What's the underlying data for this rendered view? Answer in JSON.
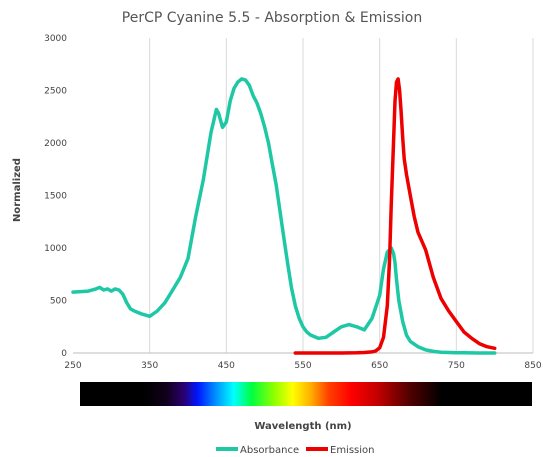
{
  "chart_data": {
    "type": "line",
    "title": "PerCP Cyanine 5.5 - Absorption & Emission",
    "xlabel": "Wavelength (nm)",
    "ylabel": "Normalized",
    "xlim": [
      250,
      850
    ],
    "ylim": [
      0,
      3000
    ],
    "x_ticks": [
      250,
      350,
      450,
      550,
      650,
      750,
      850
    ],
    "y_ticks": [
      0,
      500,
      1000,
      1500,
      2000,
      2500,
      3000
    ],
    "grid": "vertical",
    "legend_position": "bottom",
    "color_bar": "visible spectrum strip below x axis",
    "series": [
      {
        "name": "Absorbance",
        "color": "#1ec8a5",
        "x": [
          250,
          260,
          270,
          280,
          285,
          290,
          295,
          300,
          305,
          310,
          315,
          320,
          325,
          330,
          340,
          350,
          360,
          370,
          380,
          390,
          400,
          410,
          420,
          430,
          437,
          440,
          445,
          450,
          455,
          460,
          465,
          470,
          475,
          480,
          485,
          490,
          495,
          500,
          505,
          510,
          515,
          520,
          525,
          530,
          535,
          540,
          545,
          550,
          555,
          560,
          570,
          580,
          590,
          600,
          610,
          620,
          630,
          640,
          650,
          655,
          660,
          665,
          668,
          670,
          672,
          675,
          680,
          685,
          690,
          700,
          710,
          720,
          730,
          740,
          750,
          760,
          780,
          800
        ],
        "y": [
          580,
          585,
          590,
          610,
          625,
          600,
          610,
          590,
          610,
          600,
          560,
          480,
          420,
          400,
          370,
          350,
          400,
          480,
          600,
          720,
          900,
          1300,
          1650,
          2100,
          2320,
          2280,
          2150,
          2200,
          2400,
          2520,
          2580,
          2610,
          2600,
          2550,
          2450,
          2380,
          2280,
          2150,
          2000,
          1800,
          1600,
          1350,
          1100,
          850,
          620,
          450,
          330,
          250,
          200,
          170,
          140,
          150,
          200,
          250,
          270,
          250,
          220,
          330,
          550,
          800,
          960,
          1000,
          950,
          860,
          700,
          500,
          300,
          170,
          110,
          60,
          30,
          15,
          8,
          5,
          3,
          2,
          0,
          0
        ]
      },
      {
        "name": "Emission",
        "color": "#ee0000",
        "x": [
          540,
          560,
          580,
          600,
          620,
          630,
          640,
          645,
          650,
          655,
          660,
          663,
          665,
          668,
          670,
          672,
          674,
          676,
          678,
          680,
          682,
          685,
          690,
          695,
          700,
          710,
          720,
          730,
          740,
          750,
          760,
          770,
          780,
          790,
          800
        ],
        "y": [
          0,
          0,
          0,
          0,
          2,
          5,
          10,
          20,
          50,
          150,
          450,
          900,
          1400,
          2000,
          2400,
          2580,
          2610,
          2500,
          2300,
          2050,
          1850,
          1700,
          1500,
          1300,
          1150,
          980,
          720,
          520,
          400,
          300,
          200,
          140,
          90,
          60,
          45
        ]
      }
    ]
  }
}
